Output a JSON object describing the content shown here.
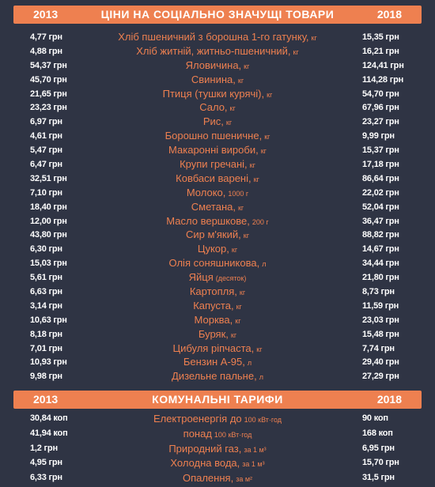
{
  "section1": {
    "year_left": "2013",
    "title": "ЦІНИ НА СОЦІАЛЬНО ЗНАЧУЩІ ТОВАРИ",
    "year_right": "2018",
    "rows": [
      {
        "p13": "4,77 грн",
        "name": "Хліб пшеничний з борошна 1-го гатунку,",
        "unit": "кг",
        "p18": "15,35 грн"
      },
      {
        "p13": "4,88 грн",
        "name": "Хліб житній, житньо-пшеничний,",
        "unit": "кг",
        "p18": "16,21 грн"
      },
      {
        "p13": "54,37 грн",
        "name": "Яловичина,",
        "unit": "кг",
        "p18": "124,41 грн"
      },
      {
        "p13": "45,70 грн",
        "name": "Свинина,",
        "unit": "кг",
        "p18": "114,28 грн"
      },
      {
        "p13": "21,65 грн",
        "name": "Птиця (тушки курячі),",
        "unit": "кг",
        "p18": "54,70 грн"
      },
      {
        "p13": "23,23 грн",
        "name": "Сало,",
        "unit": "кг",
        "p18": "67,96 грн"
      },
      {
        "p13": "6,97 грн",
        "name": "Рис,",
        "unit": "кг",
        "p18": "23,27 грн"
      },
      {
        "p13": "4,61 грн",
        "name": "Борошно пшеничне,",
        "unit": "кг",
        "p18": "9,99 грн"
      },
      {
        "p13": "5,47 грн",
        "name": "Макаронні вироби,",
        "unit": "кг",
        "p18": "15,37 грн"
      },
      {
        "p13": "6,47 грн",
        "name": "Крупи гречані,",
        "unit": "кг",
        "p18": "17,18 грн"
      },
      {
        "p13": "32,51 грн",
        "name": "Ковбаси варені,",
        "unit": "кг",
        "p18": "86,64 грн"
      },
      {
        "p13": "7,10 грн",
        "name": "Молоко,",
        "unit": "1000 г",
        "p18": "22,02 грн"
      },
      {
        "p13": "18,40 грн",
        "name": "Сметана,",
        "unit": "кг",
        "p18": "52,04 грн"
      },
      {
        "p13": "12,00 грн",
        "name": "Масло вершкове,",
        "unit": "200 г",
        "p18": "36,47 грн"
      },
      {
        "p13": "43,80 грн",
        "name": "Сир м'який,",
        "unit": "кг",
        "p18": "88,82 грн"
      },
      {
        "p13": "6,30 грн",
        "name": "Цукор,",
        "unit": "кг",
        "p18": "14,67 грн"
      },
      {
        "p13": "15,03 грн",
        "name": "Олія соняшникова,",
        "unit": "л",
        "p18": "34,44 грн"
      },
      {
        "p13": "5,61 грн",
        "name": "Яйця",
        "unit": "(десяток)",
        "p18": "21,80 грн"
      },
      {
        "p13": "6,63 грн",
        "name": "Картопля,",
        "unit": "кг",
        "p18": "8,73 грн"
      },
      {
        "p13": "3,14 грн",
        "name": "Капуста,",
        "unit": "кг",
        "p18": "11,59 грн"
      },
      {
        "p13": "10,63 грн",
        "name": "Морква,",
        "unit": "кг",
        "p18": "23,03 грн"
      },
      {
        "p13": "8,18 грн",
        "name": "Буряк,",
        "unit": "кг",
        "p18": "15,48 грн"
      },
      {
        "p13": "7,01 грн",
        "name": "Цибуля ріпчаста,",
        "unit": "кг",
        "p18": "7,74 грн"
      },
      {
        "p13": "10,93 грн",
        "name": "Бензин А-95,",
        "unit": "л",
        "p18": "29,40 грн"
      },
      {
        "p13": "9,98 грн",
        "name": "Дизельне пальне,",
        "unit": "л",
        "p18": "27,29 грн"
      }
    ]
  },
  "section2": {
    "year_left": "2013",
    "title": "КОМУНАЛЬНІ ТАРИФИ",
    "year_right": "2018",
    "rows": [
      {
        "p13": "30,84 коп",
        "name": "Електроенергія до",
        "unit": "100 кВт·год",
        "p18": "90 коп"
      },
      {
        "p13": "41,94 коп",
        "name": "понад",
        "unit": "100 кВт·год",
        "p18": "168 коп"
      },
      {
        "p13": "1,2 грн",
        "name": "Природний газ,",
        "unit": "за 1 м³",
        "p18": "6,95 грн"
      },
      {
        "p13": "4,95 грн",
        "name": "Холодна вода,",
        "unit": "за 1 м³",
        "p18": "15,70 грн"
      },
      {
        "p13": "6,33 грн",
        "name": "Опалення,",
        "unit": "за м²",
        "p18": "31,5 грн"
      }
    ]
  },
  "colors": {
    "background": "#2f3444",
    "accent": "#ee8050",
    "price_text": "#ffffff"
  }
}
